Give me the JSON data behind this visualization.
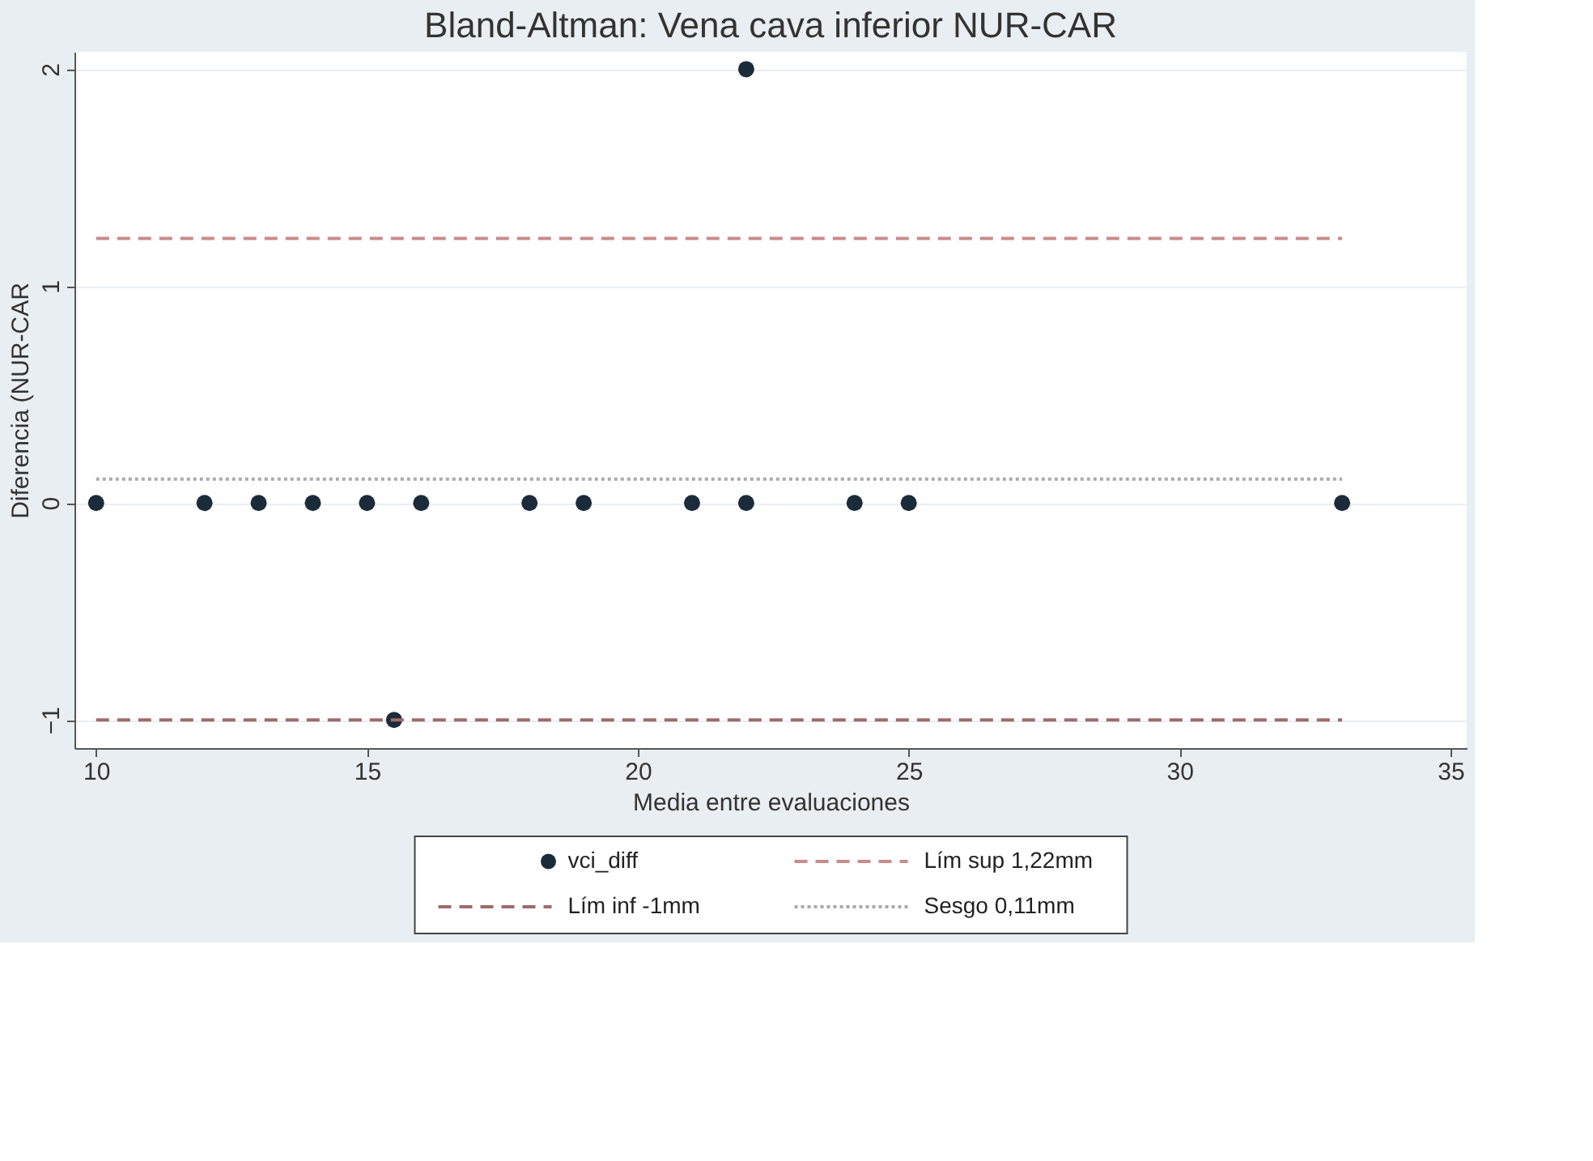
{
  "chart_data": {
    "type": "scatter",
    "title": "Bland-Altman: Vena cava inferior NUR-CAR",
    "xlabel": "Media entre evaluaciones",
    "ylabel": "Diferencia (NUR-CAR",
    "xlim": [
      9.6,
      35.3
    ],
    "ylim": [
      -1.13,
      2.08
    ],
    "xticks": [
      10,
      15,
      20,
      25,
      30,
      35
    ],
    "yticks": [
      -1,
      0,
      1,
      2
    ],
    "grid": "y",
    "legend": "bottom",
    "series": [
      {
        "name": "vci_diff",
        "marker": "circle",
        "color": "#1c2b3a",
        "x": [
          10,
          12,
          13,
          14,
          15,
          16,
          18,
          19,
          21,
          22,
          24,
          25,
          33,
          15.5,
          22
        ],
        "values": [
          0,
          0,
          0,
          0,
          0,
          0,
          0,
          0,
          0,
          0,
          0,
          0,
          0,
          -1,
          2
        ]
      },
      {
        "name": "Lím sup 1,22mm",
        "type": "line",
        "line_style": "dashed",
        "color": "#c98b8b",
        "x": [
          10,
          33
        ],
        "values": [
          1.22,
          1.22
        ]
      },
      {
        "name": "Lím inf -1mm",
        "type": "line",
        "line_style": "dashed",
        "color": "#9e6b6b",
        "x": [
          10,
          33
        ],
        "values": [
          -1,
          -1
        ]
      },
      {
        "name": "Sesgo 0,11mm",
        "type": "line",
        "line_style": "dotted",
        "color": "#aaaaaa",
        "x": [
          10,
          33
        ],
        "values": [
          0.11,
          0.11
        ]
      }
    ]
  }
}
